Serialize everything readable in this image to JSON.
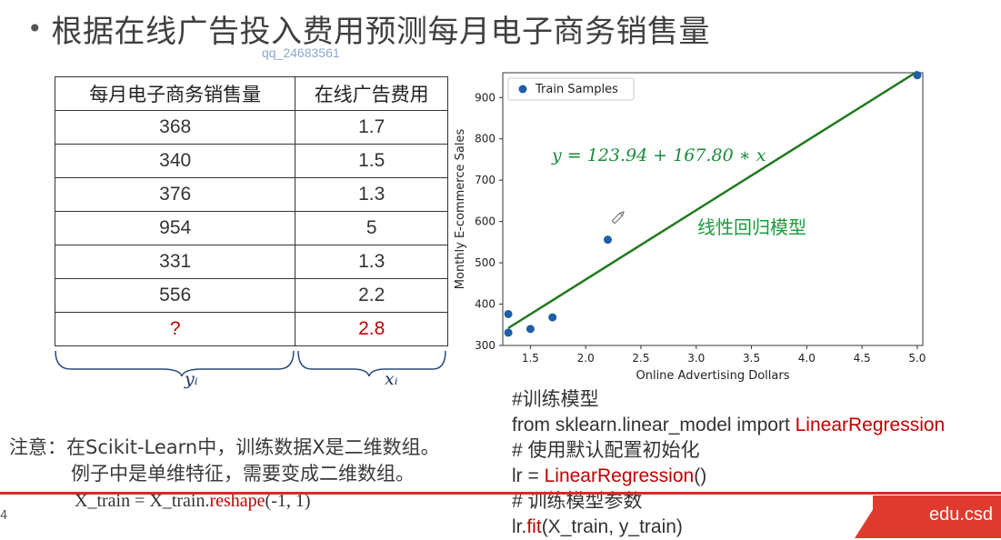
{
  "title": {
    "bullet": "•",
    "text": "根据在线广告投入费用预测每月电子商务销售量"
  },
  "watermark": "qq_24683561",
  "table": {
    "headers": [
      "每月电子商务销售量",
      "在线广告费用"
    ],
    "rows": [
      [
        "368",
        "1.7"
      ],
      [
        "340",
        "1.5"
      ],
      [
        "376",
        "1.3"
      ],
      [
        "954",
        "5"
      ],
      [
        "331",
        "1.3"
      ],
      [
        "556",
        "2.2"
      ],
      [
        "?",
        "2.8"
      ]
    ],
    "query_color": "#c00000"
  },
  "labels": {
    "y_var": "yᵢ",
    "x_var": "xᵢ"
  },
  "note": {
    "line1": "注意：在Scikit-Learn中，训练数据X是二维数组。",
    "line2": "例子中是单维特征，需要变成二维数组。",
    "code_prefix": "X_train = X_train.",
    "code_method": "reshape",
    "code_suffix": "(-1, 1)"
  },
  "chart_data": {
    "type": "scatter",
    "title": "",
    "xlabel": "Online Advertising Dollars",
    "ylabel": "Monthly E-commerce Sales",
    "xlim": [
      1.25,
      5.05
    ],
    "ylim": [
      300,
      960
    ],
    "xticks": [
      "1.5",
      "2.0",
      "2.5",
      "3.0",
      "3.5",
      "4.0",
      "4.5",
      "5.0"
    ],
    "yticks": [
      "300",
      "400",
      "500",
      "600",
      "700",
      "800",
      "900"
    ],
    "legend": "Train Samples",
    "legend_position": "top-left",
    "series": [
      {
        "name": "Train Samples",
        "points": [
          [
            1.7,
            368
          ],
          [
            1.5,
            340
          ],
          [
            1.3,
            376
          ],
          [
            5.0,
            954
          ],
          [
            1.3,
            331
          ],
          [
            2.2,
            556
          ]
        ],
        "color": "#1f5fa8"
      }
    ],
    "fit_line": {
      "intercept": 123.94,
      "slope": 167.8,
      "x_range": [
        1.3,
        5.0
      ],
      "color": "#1f7a1f"
    },
    "equation": "y = 123.94 + 167.80 ∗ x",
    "annotation": "线性回归模型",
    "annotation_color": "#1a9b3c"
  },
  "code": {
    "comment1": "#训练模型",
    "import_prefix": "from sklearn.linear_model import ",
    "import_class": "LinearRegression",
    "comment2": "# 使用默认配置初始化",
    "init_prefix": "lr = ",
    "init_class": "LinearRegression",
    "init_suffix": "()",
    "comment3": "# 训练模型参数",
    "fit_prefix": "lr.",
    "fit_method": "fit",
    "fit_suffix": "(X_train, y_train)"
  },
  "footer": {
    "text": "edu.csd",
    "page": "4"
  }
}
